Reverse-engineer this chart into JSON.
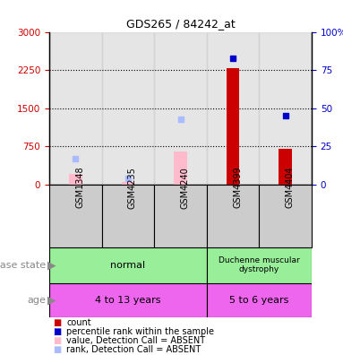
{
  "title": "GDS265 / 84242_at",
  "samples": [
    "GSM1348",
    "GSM4235",
    "GSM4240",
    "GSM4399",
    "GSM4404"
  ],
  "count_values": [
    null,
    null,
    null,
    2280,
    700
  ],
  "percentile_right": [
    null,
    null,
    null,
    83,
    45
  ],
  "absent_value": [
    200,
    50,
    650,
    null,
    null
  ],
  "absent_rank_right": [
    17,
    4,
    43,
    null,
    null
  ],
  "ylim_left": [
    0,
    3000
  ],
  "ylim_right": [
    0,
    100
  ],
  "yticks_left": [
    0,
    750,
    1500,
    2250,
    3000
  ],
  "yticks_right": [
    0,
    25,
    50,
    75,
    100
  ],
  "ytick_labels_left": [
    "0",
    "750",
    "1500",
    "2250",
    "3000"
  ],
  "ytick_labels_right": [
    "0",
    "25",
    "50",
    "75",
    "100%"
  ],
  "left_tick_color": "#cc0000",
  "right_tick_color": "#0000cc",
  "normal_color": "#99ee99",
  "age_color": "#ee66ee",
  "count_color": "#cc0000",
  "percentile_color": "#0000cc",
  "absent_value_color": "#ffbbcc",
  "absent_rank_color": "#aabbff",
  "col_bg_color": "#cccccc",
  "white": "#ffffff"
}
